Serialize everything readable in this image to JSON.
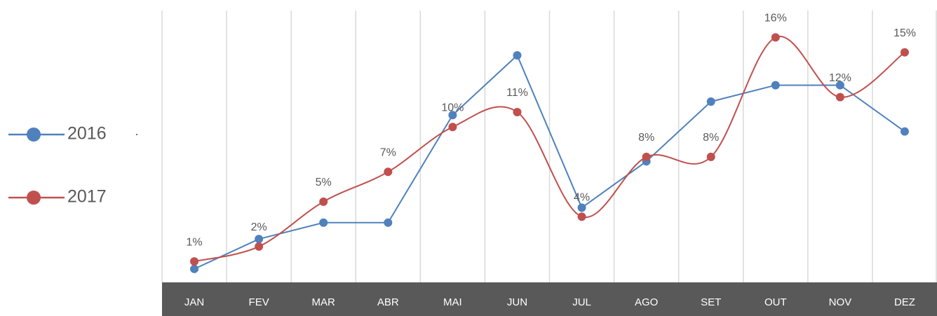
{
  "chart_data": {
    "type": "line",
    "categories": [
      "JAN",
      "FEV",
      "MAR",
      "ABR",
      "MAI",
      "JUN",
      "JUL",
      "AGO",
      "SET",
      "OUT",
      "NOV",
      "DEZ"
    ],
    "series": [
      {
        "name": "2016",
        "color": "#4f81bd",
        "smooth": false,
        "values": [
          0.5,
          2.5,
          3.6,
          3.6,
          10.8,
          14.8,
          4.6,
          7.7,
          11.7,
          12.8,
          12.8,
          9.7
        ]
      },
      {
        "name": "2017",
        "color": "#c0504d",
        "smooth": true,
        "values": [
          1,
          2,
          5,
          7,
          10,
          11,
          4,
          8,
          8,
          16,
          12,
          15
        ],
        "value_labels": [
          "1%",
          "2%",
          "5%",
          "7%",
          "10%",
          "11%",
          "4%",
          "8%",
          "8%",
          "16%",
          "12%",
          "15%"
        ]
      }
    ],
    "ylim": [
      -0.4,
      17.8
    ],
    "grid": true,
    "legend": "left"
  }
}
